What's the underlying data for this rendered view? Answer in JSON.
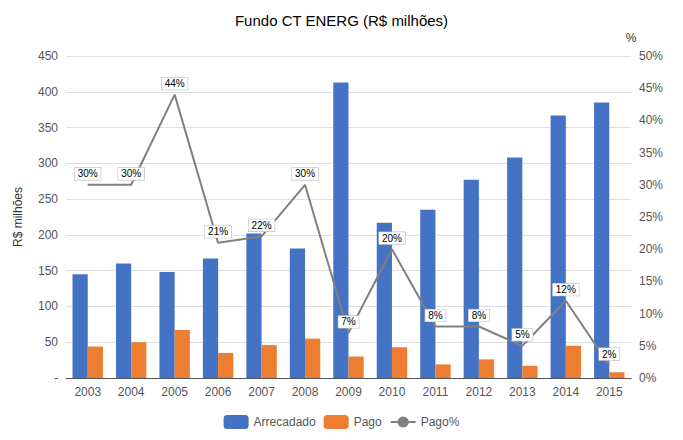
{
  "chart_data": {
    "type": "bar",
    "title": "Fundo CT ENERG (R$ milhões)",
    "categories": [
      "2003",
      "2004",
      "2005",
      "2006",
      "2007",
      "2008",
      "2009",
      "2010",
      "2011",
      "2012",
      "2013",
      "2014",
      "2015"
    ],
    "series": [
      {
        "name": "Arrecadado",
        "type": "bar",
        "color": "#4472C4",
        "values": [
          145,
          160,
          148,
          167,
          202,
          181,
          413,
          217,
          235,
          277,
          308,
          367,
          385
        ]
      },
      {
        "name": "Pago",
        "type": "bar",
        "color": "#ED7D31",
        "values": [
          44,
          50,
          67,
          35,
          46,
          55,
          30,
          43,
          19,
          26,
          17,
          45,
          8
        ]
      },
      {
        "name": "Pago%",
        "type": "line",
        "axis": "y2",
        "color": "#808080",
        "data_labels": true,
        "values": [
          0.3,
          0.3,
          0.44,
          0.21,
          0.22,
          0.3,
          0.07,
          0.2,
          0.08,
          0.08,
          0.05,
          0.12,
          0.02
        ],
        "value_labels": [
          "30%",
          "30%",
          "44%",
          "21%",
          "22%",
          "30%",
          "7%",
          "20%",
          "8%",
          "8%",
          "5%",
          "12%",
          "2%"
        ]
      }
    ],
    "ylabel": "R$ milhões",
    "y2label": "%",
    "ylim": [
      0,
      450
    ],
    "yticks": [
      {
        "value": 0,
        "label": "-"
      },
      50,
      100,
      150,
      200,
      250,
      300,
      350,
      400,
      450
    ],
    "y2lim": [
      0,
      0.5
    ],
    "y2ticks": [
      {
        "value": 0.0,
        "label": "0%"
      },
      {
        "value": 0.05,
        "label": "5%"
      },
      {
        "value": 0.1,
        "label": "10%"
      },
      {
        "value": 0.15,
        "label": "15%"
      },
      {
        "value": 0.2,
        "label": "20%"
      },
      {
        "value": 0.25,
        "label": "25%"
      },
      {
        "value": 0.3,
        "label": "30%"
      },
      {
        "value": 0.35,
        "label": "35%"
      },
      {
        "value": 0.4,
        "label": "40%"
      },
      {
        "value": 0.45,
        "label": "45%"
      },
      {
        "value": 0.5,
        "label": "50%"
      }
    ],
    "grid": true,
    "legend": "bottom"
  }
}
